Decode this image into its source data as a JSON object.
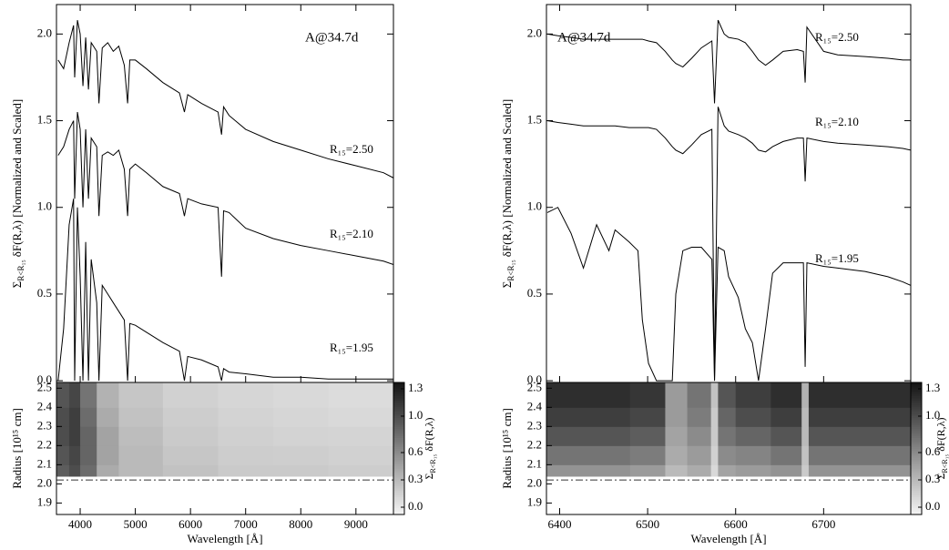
{
  "chart_data": [
    {
      "type": "line",
      "title": "A@34.7d",
      "ylabel": {
        "symbol": "Σ",
        "subscript": "R<R₁₅",
        "text": "δF(R,λ) [Normalized and Scaled]"
      },
      "xlim": [
        3570,
        9680
      ],
      "ylim": [
        -0.01,
        2.17
      ],
      "yticks": [
        {
          "value": 0,
          "label": "0.0"
        },
        {
          "value": 0.5,
          "label": "0.5"
        },
        {
          "value": 1,
          "label": "1.0"
        },
        {
          "value": 1.5,
          "label": "1.5"
        },
        {
          "value": 2,
          "label": "2.0"
        }
      ],
      "x": [
        3600,
        3700,
        3800,
        3880,
        3900,
        3950,
        4000,
        4050,
        4100,
        4150,
        4200,
        4300,
        4340,
        4400,
        4500,
        4600,
        4700,
        4800,
        4860,
        4900,
        5000,
        5200,
        5500,
        5800,
        5890,
        5950,
        6200,
        6500,
        6563,
        6600,
        6700,
        7000,
        7500,
        8000,
        8500,
        9000,
        9500,
        9680
      ],
      "series": [
        {
          "name": "R₁₅=2.50",
          "color": "#000000",
          "values": [
            1.85,
            1.8,
            1.95,
            2.05,
            1.75,
            2.08,
            2.0,
            1.7,
            1.98,
            1.68,
            1.95,
            1.9,
            1.6,
            1.92,
            1.95,
            1.9,
            1.93,
            1.82,
            1.6,
            1.85,
            1.85,
            1.8,
            1.72,
            1.66,
            1.55,
            1.65,
            1.6,
            1.55,
            1.42,
            1.58,
            1.53,
            1.45,
            1.38,
            1.33,
            1.28,
            1.24,
            1.2,
            1.17
          ]
        },
        {
          "name": "R₁₅=2.10",
          "color": "#000000",
          "values": [
            1.3,
            1.35,
            1.45,
            1.5,
            1.05,
            1.55,
            1.45,
            1.0,
            1.45,
            1.05,
            1.4,
            1.35,
            0.95,
            1.3,
            1.32,
            1.3,
            1.33,
            1.22,
            0.95,
            1.22,
            1.25,
            1.2,
            1.12,
            1.08,
            0.95,
            1.05,
            1.02,
            1.0,
            0.6,
            0.98,
            0.97,
            0.88,
            0.82,
            0.78,
            0.75,
            0.72,
            0.69,
            0.67
          ]
        },
        {
          "name": "R₁₅=1.95",
          "color": "#000000",
          "values": [
            0.0,
            0.3,
            0.9,
            1.05,
            0.0,
            1.0,
            0.6,
            0.0,
            0.8,
            0.0,
            0.7,
            0.45,
            0.0,
            0.55,
            0.5,
            0.45,
            0.4,
            0.35,
            0.0,
            0.33,
            0.32,
            0.28,
            0.22,
            0.17,
            0.0,
            0.14,
            0.12,
            0.08,
            0.0,
            0.07,
            0.05,
            0.04,
            0.02,
            0.02,
            0.01,
            0.01,
            0.01,
            0.01
          ]
        }
      ]
    },
    {
      "type": "heatmap",
      "xlabel": "Wavelength [Å]",
      "ylabel": "Radius [10¹⁵ cm]",
      "xlim": [
        3570,
        9680
      ],
      "ylim": [
        1.84,
        2.53
      ],
      "xticks": [
        4000,
        5000,
        6000,
        7000,
        8000,
        9000
      ],
      "yticks": [
        1.9,
        {
          "value": 2,
          "label": "2.0"
        },
        2.1,
        2.2,
        2.3,
        2.4,
        2.5
      ],
      "x_edges": [
        3570,
        3800,
        4000,
        4300,
        4700,
        5500,
        6500,
        7500,
        8500,
        9680
      ],
      "y_edges": [
        2.04,
        2.1,
        2.2,
        2.3,
        2.4,
        2.53
      ],
      "values": [
        [
          0.9,
          1.0,
          0.8,
          0.4,
          0.3,
          0.25,
          0.2,
          0.2,
          0.18
        ],
        [
          0.95,
          1.05,
          0.85,
          0.45,
          0.3,
          0.22,
          0.18,
          0.17,
          0.15
        ],
        [
          1.0,
          1.1,
          0.85,
          0.45,
          0.28,
          0.2,
          0.16,
          0.14,
          0.13
        ],
        [
          1.0,
          1.1,
          0.8,
          0.4,
          0.25,
          0.18,
          0.14,
          0.12,
          0.1
        ],
        [
          0.95,
          1.05,
          0.75,
          0.35,
          0.22,
          0.15,
          0.12,
          0.1,
          0.08
        ]
      ],
      "reference_line": 2.02,
      "colorbar": {
        "label": {
          "symbol": "Σ",
          "subscript": "R<R₁₅",
          "text": "δF(R,λ)"
        },
        "lim": [
          -0.08,
          1.37
        ],
        "ticks": [
          {
            "value": 0,
            "label": "0.0"
          },
          0.3,
          0.6,
          {
            "value": 1,
            "label": "1.0"
          },
          1.3
        ]
      }
    },
    {
      "type": "line",
      "title": "A@34.7d",
      "ylabel": {
        "symbol": "Σ",
        "subscript": "R<R₁₅",
        "text": "δF(R,λ) [Normalized and Scaled]"
      },
      "xlim": [
        6385,
        6799
      ],
      "ylim": [
        -0.01,
        2.17
      ],
      "yticks": [
        {
          "value": 0,
          "label": "0.0"
        },
        {
          "value": 0.5,
          "label": "0.5"
        },
        {
          "value": 1,
          "label": "1.0"
        },
        {
          "value": 1.5,
          "label": "1.5"
        },
        {
          "value": 2,
          "label": "2.0"
        }
      ],
      "x": [
        6386,
        6398,
        6413,
        6427,
        6442,
        6456,
        6463,
        6479,
        6489,
        6494,
        6501,
        6510,
        6520,
        6528,
        6532,
        6540,
        6550,
        6561,
        6573,
        6576,
        6580,
        6587,
        6592,
        6603,
        6611,
        6619,
        6626,
        6634,
        6642,
        6654,
        6670,
        6677,
        6679,
        6681,
        6700,
        6716,
        6747,
        6773,
        6790,
        6799
      ],
      "series": [
        {
          "name": "R₁₅=2.50",
          "color": "#000000",
          "values": [
            2.0,
            1.99,
            1.98,
            1.97,
            1.97,
            1.97,
            1.97,
            1.97,
            1.97,
            1.97,
            1.96,
            1.95,
            1.9,
            1.85,
            1.83,
            1.81,
            1.86,
            1.92,
            1.96,
            1.6,
            2.08,
            2.0,
            1.98,
            1.97,
            1.95,
            1.9,
            1.85,
            1.82,
            1.85,
            1.9,
            1.91,
            1.9,
            1.72,
            2.04,
            1.9,
            1.88,
            1.87,
            1.86,
            1.85,
            1.85
          ]
        },
        {
          "name": "R₁₅=2.10",
          "color": "#000000",
          "values": [
            1.5,
            1.49,
            1.48,
            1.47,
            1.47,
            1.47,
            1.47,
            1.46,
            1.46,
            1.46,
            1.46,
            1.45,
            1.4,
            1.35,
            1.33,
            1.31,
            1.36,
            1.42,
            1.45,
            0.0,
            1.58,
            1.47,
            1.44,
            1.42,
            1.4,
            1.37,
            1.33,
            1.32,
            1.35,
            1.38,
            1.4,
            1.4,
            1.15,
            1.4,
            1.38,
            1.37,
            1.36,
            1.35,
            1.34,
            1.33
          ]
        },
        {
          "name": "R₁₅=1.95",
          "color": "#000000",
          "values": [
            0.97,
            1.0,
            0.85,
            0.65,
            0.9,
            0.75,
            0.87,
            0.8,
            0.75,
            0.35,
            0.1,
            0.0,
            0.0,
            0.0,
            0.5,
            0.75,
            0.77,
            0.77,
            0.7,
            0.0,
            0.77,
            0.75,
            0.6,
            0.48,
            0.3,
            0.22,
            0.0,
            0.3,
            0.62,
            0.68,
            0.68,
            0.68,
            0.08,
            0.68,
            0.66,
            0.65,
            0.63,
            0.6,
            0.57,
            0.55
          ]
        }
      ]
    },
    {
      "type": "heatmap",
      "xlabel": "Wavelength [Å]",
      "ylabel": "Radius [10¹⁵ cm]",
      "xlim": [
        6385,
        6799
      ],
      "ylim": [
        1.84,
        2.53
      ],
      "xticks": [
        6400,
        6500,
        6600,
        6700
      ],
      "yticks": [
        1.9,
        {
          "value": 2,
          "label": "2.0"
        },
        2.1,
        2.2,
        2.3,
        2.4,
        2.5
      ],
      "x_edges": [
        6385,
        6480,
        6520,
        6545,
        6572,
        6580,
        6600,
        6640,
        6675,
        6683,
        6799
      ],
      "y_edges": [
        2.04,
        2.1,
        2.2,
        2.3,
        2.4,
        2.53
      ],
      "values": [
        [
          0.55,
          0.5,
          0.3,
          0.4,
          0.1,
          0.45,
          0.5,
          0.55,
          0.2,
          0.55
        ],
        [
          0.75,
          0.7,
          0.4,
          0.5,
          0.15,
          0.6,
          0.65,
          0.75,
          0.25,
          0.75
        ],
        [
          0.95,
          0.9,
          0.45,
          0.6,
          0.2,
          0.75,
          0.85,
          0.95,
          0.3,
          0.95
        ],
        [
          1.1,
          1.05,
          0.5,
          0.7,
          0.2,
          0.85,
          1.0,
          1.1,
          0.3,
          1.1
        ],
        [
          1.2,
          1.15,
          0.5,
          0.75,
          0.25,
          0.95,
          1.1,
          1.2,
          0.35,
          1.2
        ]
      ],
      "reference_line": 2.02,
      "colorbar": {
        "label": {
          "symbol": "Σ",
          "subscript": "R<R₁₅",
          "text": "δF(R,λ)"
        },
        "lim": [
          -0.08,
          1.37
        ],
        "ticks": [
          {
            "value": 0,
            "label": "0.0"
          },
          0.3,
          0.6,
          {
            "value": 1,
            "label": "1.0"
          },
          1.3
        ]
      }
    }
  ]
}
